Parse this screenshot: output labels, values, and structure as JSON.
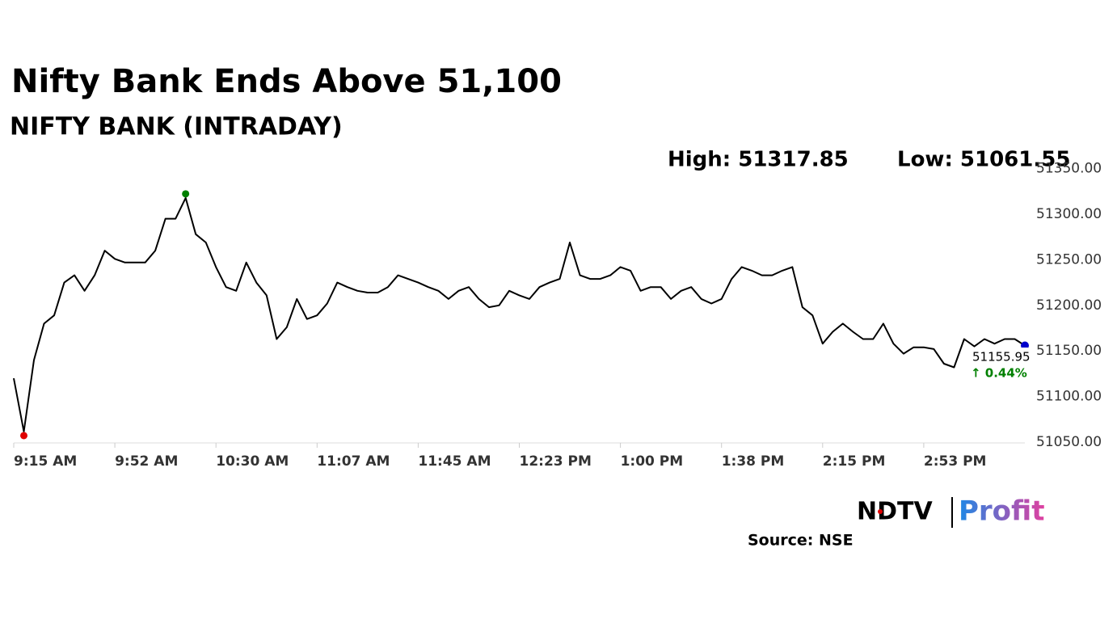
{
  "chart_data": {
    "type": "line",
    "title": "Nifty Bank Ends Above 51,100",
    "subtitle": "NIFTY BANK (INTRADAY)",
    "high": {
      "value": 51317.85,
      "label": "High: 51317.85"
    },
    "low": {
      "value": 51061.55,
      "label": "Low: 51061.55"
    },
    "high_color": "#008000",
    "low_color": "#e00000",
    "last_color": "#0000cc",
    "last_label": 51155.95,
    "change": {
      "value": 0.44,
      "label": "↑ 0.44%"
    },
    "change_color": "#008000",
    "color": "#000000",
    "categories": [
      "9:15 AM",
      null,
      null,
      null,
      null,
      null,
      null,
      null,
      null,
      null,
      "9:52 AM",
      null,
      null,
      null,
      null,
      null,
      null,
      null,
      null,
      null,
      "10:30 AM",
      null,
      null,
      null,
      null,
      null,
      null,
      null,
      null,
      null,
      "11:07 AM",
      null,
      null,
      null,
      null,
      null,
      null,
      null,
      null,
      null,
      "11:45 AM",
      null,
      null,
      null,
      null,
      null,
      null,
      null,
      null,
      null,
      "12:23 PM",
      null,
      null,
      null,
      null,
      null,
      null,
      null,
      null,
      null,
      "1:00 PM",
      null,
      null,
      null,
      null,
      null,
      null,
      null,
      null,
      null,
      "1:38 PM",
      null,
      null,
      null,
      null,
      null,
      null,
      null,
      null,
      null,
      "2:15 PM",
      null,
      null,
      null,
      null,
      null,
      null,
      null,
      null,
      null,
      "2:53 PM",
      null,
      null,
      null,
      null,
      null,
      null,
      null,
      null,
      null,
      null
    ],
    "values": [
      51120,
      51061.55,
      51140,
      51180,
      51189,
      51225,
      51233,
      51216,
      51233,
      51260,
      51251,
      51247,
      51247,
      51247,
      51260,
      51295,
      51295,
      51317.85,
      51278,
      51269,
      51242,
      51220,
      51216,
      51247,
      51225,
      51211,
      51163,
      51176,
      51207,
      51185,
      51189,
      51202,
      51225,
      51220,
      51216,
      51214,
      51214,
      51220,
      51233,
      51229,
      51225,
      51220,
      51216,
      51207,
      51216,
      51220,
      51207,
      51198,
      51200,
      51216,
      51211,
      51207,
      51220,
      51225,
      51229,
      51269,
      51233,
      51229,
      51229,
      51233,
      51242,
      51238,
      51216,
      51220,
      51220,
      51207,
      51216,
      51220,
      51207,
      51202,
      51207,
      51229,
      51242,
      51238,
      51233,
      51233,
      51238,
      51242,
      51198,
      51189,
      51158,
      51171,
      51180,
      51171,
      51163,
      51163,
      51180,
      51158,
      51147,
      51154,
      51154,
      51152,
      51136,
      51132,
      51163,
      51155,
      51163,
      51158,
      51163,
      51163,
      51155.95
    ],
    "ylim": [
      51050,
      51350
    ],
    "yticks": [
      {
        "value": 51050,
        "label": "51050.00"
      },
      {
        "value": 51100,
        "label": "51100.00"
      },
      {
        "value": 51150,
        "label": "51150.00"
      },
      {
        "value": 51200,
        "label": "51200.00"
      },
      {
        "value": 51250,
        "label": "51250.00"
      },
      {
        "value": 51300,
        "label": "51300.00"
      },
      {
        "value": 51350,
        "label": "51350.00"
      }
    ]
  },
  "logo": "NDTV",
  "logo_sub": "Profit",
  "source": "Source: NSE"
}
